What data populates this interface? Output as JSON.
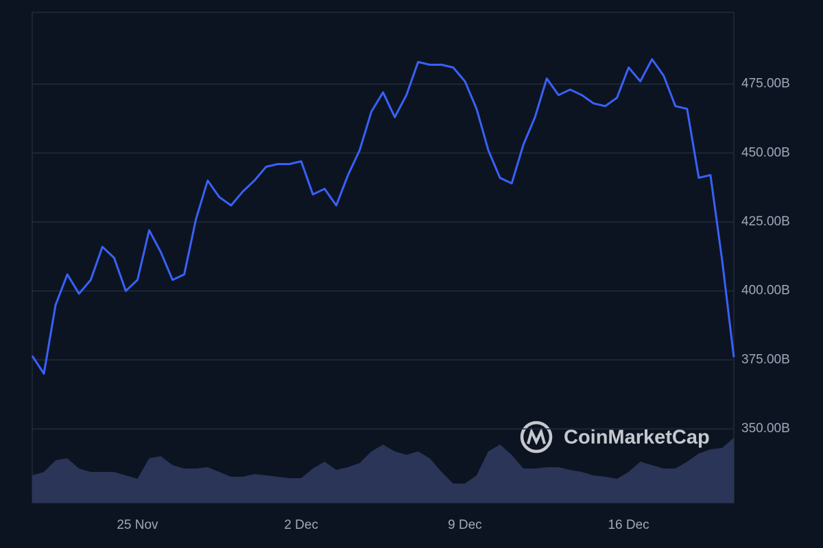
{
  "chart_data": {
    "type": "line",
    "watermark": "CoinMarketCap",
    "categories": [
      null,
      null,
      null,
      null,
      null,
      null,
      null,
      null,
      null,
      "25 Nov",
      null,
      null,
      null,
      null,
      null,
      null,
      null,
      null,
      null,
      null,
      null,
      null,
      null,
      "2 Dec",
      null,
      null,
      null,
      null,
      null,
      null,
      null,
      null,
      null,
      null,
      null,
      null,
      null,
      "9 Dec",
      null,
      null,
      null,
      null,
      null,
      null,
      null,
      null,
      null,
      null,
      null,
      null,
      null,
      "16 Dec",
      null,
      null,
      null,
      null,
      null,
      null,
      null,
      null,
      null
    ],
    "series": [
      {
        "color": "#3861fb",
        "values": [
          376.5,
          370,
          395,
          406,
          399,
          404,
          416,
          412,
          400,
          404,
          422,
          414,
          404,
          406,
          426,
          440,
          434,
          431,
          436,
          440,
          445,
          446,
          446,
          447,
          435,
          437,
          431,
          442,
          451,
          465,
          472,
          463,
          471,
          483,
          482,
          482,
          481,
          476,
          466,
          451,
          441,
          439,
          453,
          463,
          477,
          471,
          473,
          471,
          468,
          467,
          470,
          481,
          476,
          484,
          478,
          467,
          466,
          441,
          442,
          411,
          376
        ]
      }
    ],
    "volume": {
      "color": "#2a3558",
      "ylim": [
        0,
        110
      ],
      "values": [
        40,
        45,
        62,
        65,
        50,
        45,
        45,
        45,
        40,
        35,
        65,
        68,
        55,
        50,
        50,
        52,
        45,
        38,
        38,
        42,
        40,
        38,
        36,
        36,
        50,
        60,
        48,
        52,
        58,
        75,
        85,
        75,
        70,
        75,
        65,
        45,
        28,
        28,
        40,
        75,
        85,
        70,
        50,
        50,
        52,
        52,
        48,
        45,
        40,
        38,
        35,
        45,
        60,
        55,
        50,
        50,
        60,
        72,
        78,
        80,
        95
      ]
    },
    "ylim": [
      323.2,
      501
    ],
    "yticks": [
      {
        "value": 350,
        "label": "350.00B"
      },
      {
        "value": 375,
        "label": "375.00B"
      },
      {
        "value": 400,
        "label": "400.00B"
      },
      {
        "value": 425,
        "label": "425.00B"
      },
      {
        "value": 450,
        "label": "450.00B"
      },
      {
        "value": 475,
        "label": "475.00B"
      }
    ],
    "grid": true
  }
}
